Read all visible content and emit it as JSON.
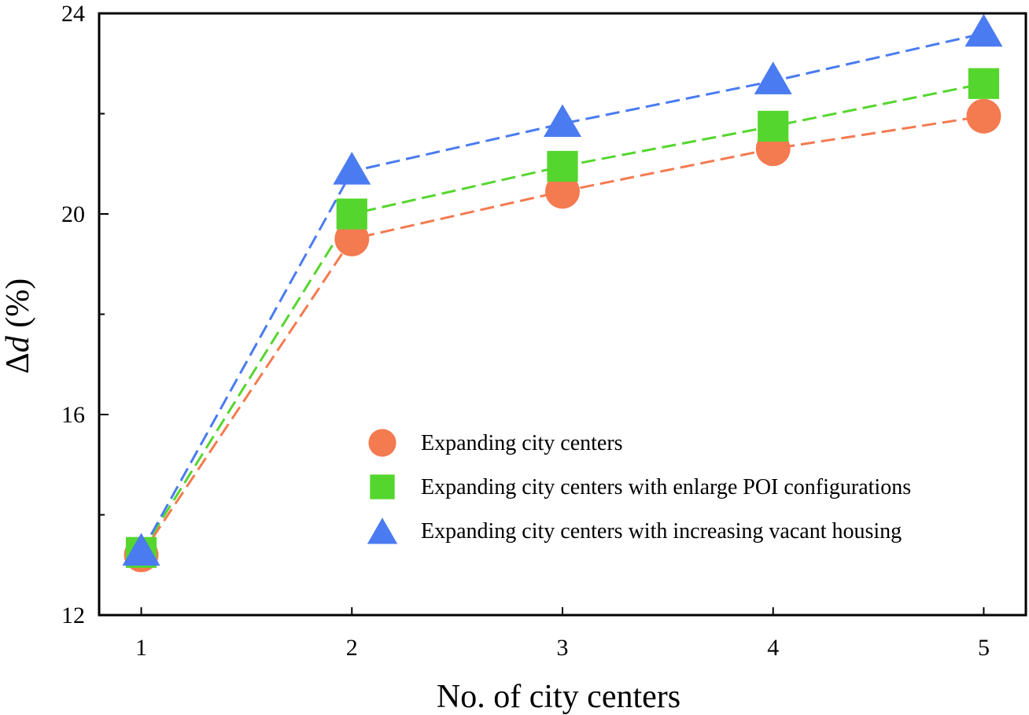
{
  "chart_data": {
    "type": "line",
    "title": "",
    "xlabel": "No. of city centers",
    "ylabel_symbol": "Δ",
    "ylabel_var": "d",
    "ylabel_unit": " (%)",
    "x": [
      1,
      2,
      3,
      4,
      5
    ],
    "xticks": [
      "1",
      "2",
      "3",
      "4",
      "5"
    ],
    "xlim": [
      0.8,
      5.2
    ],
    "ylim": [
      12,
      24
    ],
    "yticks": [
      12,
      16,
      20,
      24
    ],
    "yticks_minor": [
      14,
      18,
      22
    ],
    "ytick_labels": [
      "12",
      "16",
      "20",
      "24"
    ],
    "grid": false,
    "legend_position": "lower-right",
    "series": [
      {
        "name": "Expanding city centers",
        "marker": "circle",
        "color": "#F47A50",
        "line_style": "dashed",
        "values": [
          13.2,
          19.5,
          20.45,
          21.3,
          21.95
        ]
      },
      {
        "name": "Expanding city centers with enlarge POI configurations",
        "marker": "square",
        "color": "#55D62E",
        "line_style": "dashed",
        "values": [
          13.25,
          20.0,
          20.95,
          21.75,
          22.6
        ]
      },
      {
        "name": "Expanding city centers with increasing vacant housing",
        "marker": "triangle",
        "color": "#4A7BF0",
        "line_style": "dashed",
        "values": [
          13.25,
          20.85,
          21.8,
          22.65,
          23.6
        ]
      }
    ]
  }
}
